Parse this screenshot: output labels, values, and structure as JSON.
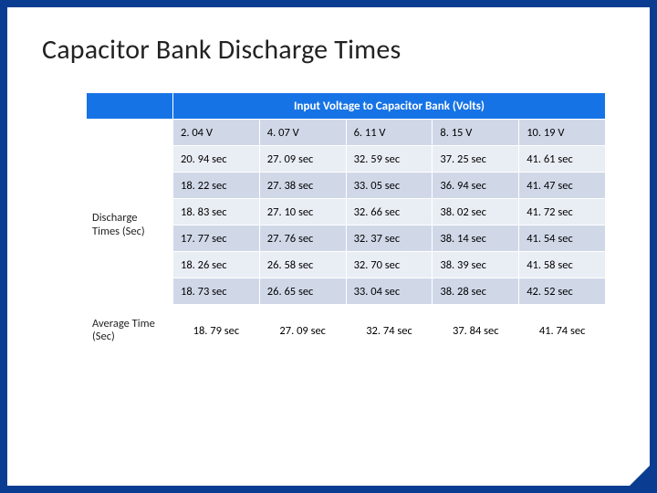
{
  "title": "Capacitor Bank Discharge Times",
  "table": {
    "header_title": "Input Voltage to Capacitor Bank (Volts)",
    "voltages": [
      "2. 04 V",
      "4. 07 V",
      "6. 11 V",
      "8. 15 V",
      "10. 19 V"
    ],
    "row_label_discharge": "Discharge Times (Sec)",
    "row_label_average": "Average Time (Sec)",
    "data": {
      "r0": [
        "20. 94 sec",
        "27. 09 sec",
        "32. 59 sec",
        "37. 25 sec",
        "41. 61 sec"
      ],
      "r1": [
        "18. 22 sec",
        "27. 38 sec",
        "33. 05 sec",
        "36. 94 sec",
        "41. 47 sec"
      ],
      "r2": [
        "18. 83 sec",
        "27. 10 sec",
        "32. 66 sec",
        "38. 02 sec",
        "41. 72 sec"
      ],
      "r3": [
        "17. 77 sec",
        "27. 76 sec",
        "32. 37 sec",
        "38. 14 sec",
        "41. 54 sec"
      ],
      "r4": [
        "18. 26 sec",
        "26. 58 sec",
        "32. 70 sec",
        "38. 39 sec",
        "41. 58 sec"
      ],
      "r5": [
        "18. 73 sec",
        "26. 65 sec",
        "33. 04 sec",
        "38. 28 sec",
        "42. 52 sec"
      ]
    },
    "average": [
      "18. 79 sec",
      "27. 09 sec",
      "32. 74 sec",
      "37. 84 sec",
      "41. 74 sec"
    ]
  },
  "colors": {
    "frame": "#0a3d91",
    "header_bg": "#1673e6",
    "band_light": "#e9edf4",
    "band_dark": "#d0d8e8",
    "text": "#222222",
    "white": "#ffffff"
  }
}
